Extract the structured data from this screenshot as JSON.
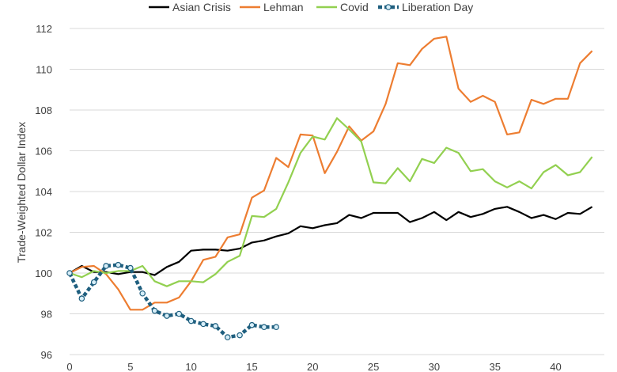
{
  "chart_data": {
    "type": "line",
    "ylabel": "Trade-Weighted Dollar Index",
    "xlabel": "",
    "xlim": [
      0,
      44
    ],
    "ylim": [
      96,
      112
    ],
    "xticks": [
      0,
      5,
      10,
      15,
      20,
      25,
      30,
      35,
      40
    ],
    "yticks": [
      96,
      98,
      100,
      102,
      104,
      106,
      108,
      110,
      112
    ],
    "grid": "horizontal",
    "legend": "top",
    "series": [
      {
        "name": "Asian Crisis",
        "color": "#000000",
        "style": "solid",
        "x": [
          0,
          1,
          2,
          3,
          4,
          5,
          6,
          7,
          8,
          9,
          10,
          11,
          12,
          13,
          14,
          15,
          16,
          17,
          18,
          19,
          20,
          21,
          22,
          23,
          24,
          25,
          26,
          27,
          28,
          29,
          30,
          31,
          32,
          33,
          34,
          35,
          36,
          37,
          38,
          39,
          40,
          41,
          42,
          43
        ],
        "y": [
          100.0,
          100.35,
          100.05,
          100.05,
          99.95,
          100.05,
          100.05,
          99.9,
          100.3,
          100.55,
          101.1,
          101.15,
          101.15,
          101.1,
          101.2,
          101.5,
          101.6,
          101.8,
          101.95,
          102.3,
          102.2,
          102.35,
          102.45,
          102.85,
          102.7,
          102.95,
          102.95,
          102.95,
          102.5,
          102.7,
          103.0,
          102.6,
          103.0,
          102.75,
          102.9,
          103.15,
          103.25,
          103.0,
          102.7,
          102.85,
          102.65,
          102.95,
          102.9,
          103.25
        ]
      },
      {
        "name": "Lehman",
        "color": "#ed7d31",
        "style": "solid",
        "x": [
          0,
          1,
          2,
          3,
          4,
          5,
          6,
          7,
          8,
          9,
          10,
          11,
          12,
          13,
          14,
          15,
          16,
          17,
          18,
          19,
          20,
          21,
          22,
          23,
          24,
          25,
          26,
          27,
          28,
          29,
          30,
          31,
          32,
          33,
          34,
          35,
          36,
          37,
          38,
          39,
          40,
          41,
          42,
          43
        ],
        "y": [
          100.0,
          100.3,
          100.35,
          99.95,
          99.2,
          98.2,
          98.2,
          98.55,
          98.55,
          98.8,
          99.6,
          100.65,
          100.8,
          101.75,
          101.9,
          103.7,
          104.05,
          105.65,
          105.2,
          106.8,
          106.75,
          104.9,
          105.95,
          107.2,
          106.5,
          106.95,
          108.3,
          110.3,
          110.2,
          111.0,
          111.5,
          111.6,
          109.05,
          108.4,
          108.7,
          108.4,
          106.8,
          106.9,
          108.5,
          108.3,
          108.55,
          108.55,
          110.3,
          110.9
        ]
      },
      {
        "name": "Covid",
        "color": "#92d050",
        "style": "solid",
        "x": [
          0,
          1,
          2,
          3,
          4,
          5,
          6,
          7,
          8,
          9,
          10,
          11,
          12,
          13,
          14,
          15,
          16,
          17,
          18,
          19,
          20,
          21,
          22,
          23,
          24,
          25,
          26,
          27,
          28,
          29,
          30,
          31,
          32,
          33,
          34,
          35,
          36,
          37,
          38,
          39,
          40,
          41,
          42,
          43
        ],
        "y": [
          100.0,
          99.8,
          100.1,
          100.0,
          100.1,
          100.1,
          100.35,
          99.6,
          99.35,
          99.6,
          99.6,
          99.55,
          99.95,
          100.55,
          100.85,
          102.8,
          102.75,
          103.15,
          104.45,
          105.9,
          106.7,
          106.55,
          107.6,
          107.05,
          106.45,
          104.45,
          104.4,
          105.15,
          104.5,
          105.6,
          105.4,
          106.15,
          105.9,
          105.0,
          105.1,
          104.5,
          104.2,
          104.5,
          104.15,
          104.95,
          105.3,
          104.8,
          104.95,
          105.7
        ]
      },
      {
        "name": "Liberation Day",
        "color": "#1f5f7f",
        "marker_fill": "#d7eef8",
        "style": "dotted-marker",
        "x": [
          0,
          1,
          2,
          3,
          4,
          5,
          6,
          7,
          8,
          9,
          10,
          11,
          12,
          13,
          14,
          15,
          16,
          17
        ],
        "y": [
          100.0,
          98.75,
          99.55,
          100.35,
          100.4,
          100.25,
          99.0,
          98.15,
          97.9,
          98.0,
          97.65,
          97.5,
          97.4,
          96.85,
          96.95,
          97.45,
          97.35,
          97.35
        ]
      }
    ]
  }
}
